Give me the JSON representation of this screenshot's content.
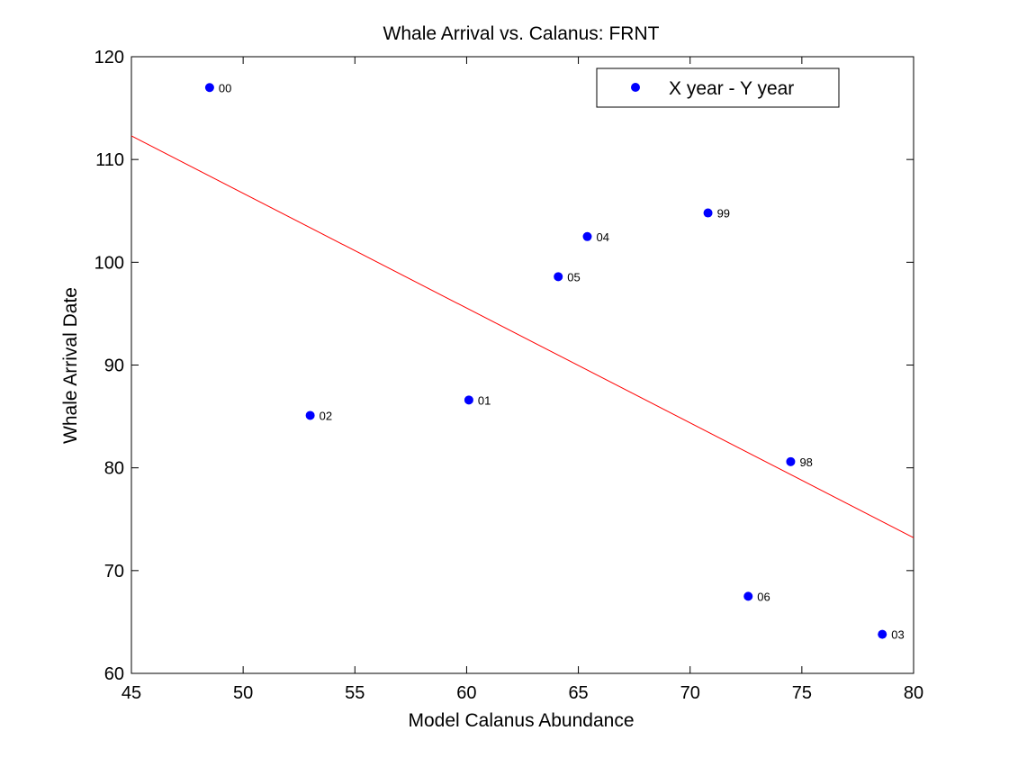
{
  "chart_data": {
    "type": "scatter",
    "title": "Whale Arrival vs. Calanus: FRNT",
    "xlabel": "Model Calanus Abundance",
    "ylabel": "Whale Arrival Date",
    "xlim": [
      45,
      80
    ],
    "ylim": [
      60,
      120
    ],
    "xticks": [
      45,
      50,
      55,
      60,
      65,
      70,
      75,
      80
    ],
    "yticks": [
      60,
      70,
      80,
      90,
      100,
      110,
      120
    ],
    "grid": false,
    "legend_position": "top-right",
    "series": [
      {
        "name": "X year - Y year",
        "color": "#0000ff",
        "marker": "circle",
        "points": [
          {
            "label": "00",
            "x": 48.5,
            "y": 117.0
          },
          {
            "label": "99",
            "x": 70.8,
            "y": 104.8
          },
          {
            "label": "04",
            "x": 65.4,
            "y": 102.5
          },
          {
            "label": "05",
            "x": 64.1,
            "y": 98.6
          },
          {
            "label": "01",
            "x": 60.1,
            "y": 86.6
          },
          {
            "label": "02",
            "x": 53.0,
            "y": 85.1
          },
          {
            "label": "98",
            "x": 74.5,
            "y": 80.6
          },
          {
            "label": "06",
            "x": 72.6,
            "y": 67.5
          },
          {
            "label": "03",
            "x": 78.6,
            "y": 63.8
          }
        ]
      }
    ],
    "fit_line": {
      "color": "#ff0000",
      "x": [
        45,
        80
      ],
      "y": [
        112.3,
        73.2
      ]
    }
  }
}
